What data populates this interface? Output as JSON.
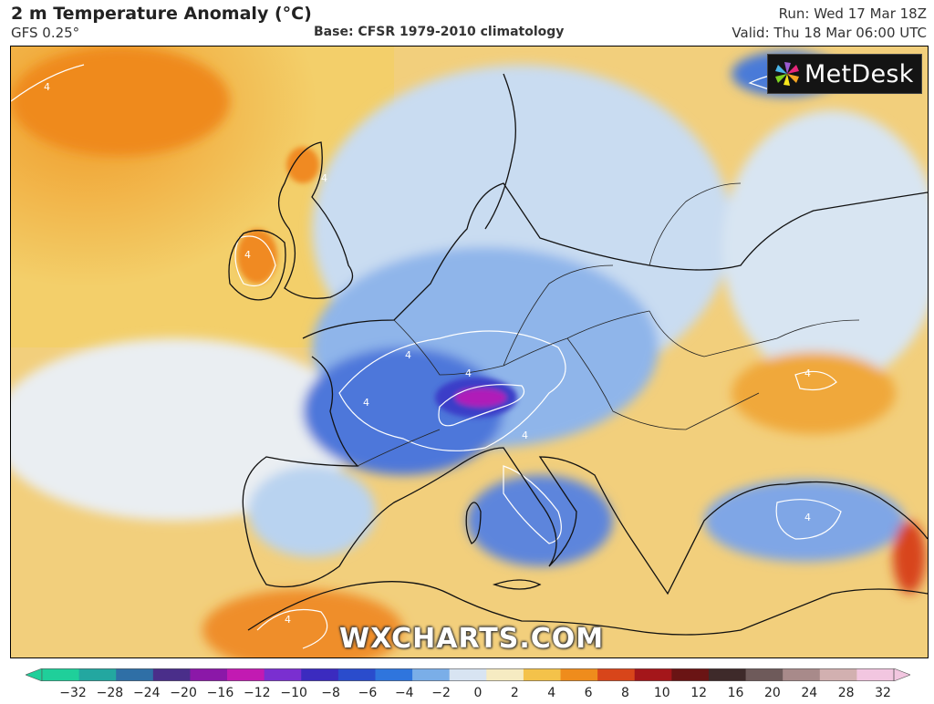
{
  "header": {
    "title": "2 m Temperature Anomaly (°C)",
    "model": "GFS 0.25°",
    "base": "Base: CFSR 1979-2010 climatology",
    "run": "Run: Wed 17 Mar 18Z",
    "valid": "Valid: Thu 18 Mar 06:00 UTC"
  },
  "logo": {
    "text": "MetDesk"
  },
  "watermark": "WXCHARTS.COM",
  "colorbar": {
    "ticks": [
      "−32",
      "−28",
      "−24",
      "−20",
      "−16",
      "−12",
      "−10",
      "−8",
      "−6",
      "−4",
      "−2",
      "0",
      "2",
      "4",
      "6",
      "8",
      "10",
      "12",
      "16",
      "20",
      "24",
      "28",
      "32"
    ],
    "colors": [
      "#1fcf9a",
      "#23a7a0",
      "#2f6fa6",
      "#4a2e8a",
      "#8b18a8",
      "#c21ab2",
      "#7a2fd0",
      "#3b2bbf",
      "#2a4ccc",
      "#2f75dd",
      "#7aaee8",
      "#d8e4f2",
      "#f6ebc2",
      "#f4c24a",
      "#ef8c1c",
      "#d8451a",
      "#a4161a",
      "#6a1414",
      "#3e2a2a",
      "#6e5a5a",
      "#a88a8a",
      "#d2b0b0",
      "#f2c6e0"
    ]
  },
  "map": {
    "ocean_color": "#f1d38a",
    "cold_color": "#3f6fd8",
    "extreme_cold_color": "#b01ab8",
    "warm_color": "#f08a20",
    "contour_labels": [
      "4",
      "4",
      "4",
      "4",
      "4",
      "4",
      "4",
      "4",
      "4",
      "4"
    ]
  }
}
